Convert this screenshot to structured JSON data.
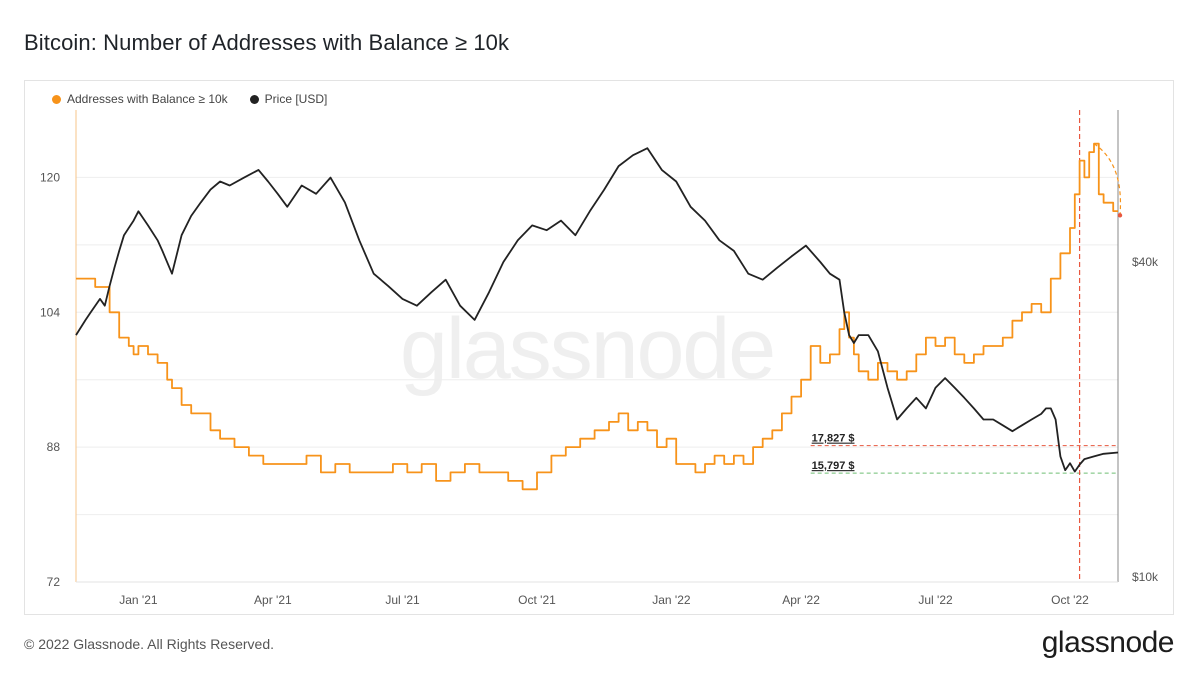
{
  "title": "Bitcoin: Number of Addresses with Balance ≥ 10k",
  "footer": "© 2022 Glassnode. All Rights Reserved.",
  "brand": "glassnode",
  "watermark": "glassnode",
  "colors": {
    "addresses": "#f7931a",
    "price": "#222222",
    "marker": "#e8573f",
    "support": "#6fbf73"
  },
  "chart_data": {
    "type": "line",
    "title": "Bitcoin: Number of Addresses with Balance ≥ 10k",
    "x_tick_labels": [
      "Jan '21",
      "Apr '21",
      "Jul '21",
      "Oct '21",
      "Jan '22",
      "Apr '22",
      "Jul '22",
      "Oct '22"
    ],
    "y_left_ticks": [
      72,
      88,
      104,
      120
    ],
    "y_left_range": [
      72,
      128
    ],
    "y_right_ticks": [
      "$10k",
      "$40k"
    ],
    "y_right_scale": "log",
    "legend": [
      "Addresses with Balance ≥ 10k",
      "Price [USD]"
    ],
    "annotations": [
      {
        "label": "17,827 $",
        "price": 17827
      },
      {
        "label": "15,797 $",
        "price": 15797
      }
    ],
    "series": [
      {
        "name": "Addresses with Balance ≥ 10k",
        "axis": "left",
        "x": [
          0,
          4,
          7,
          9,
          11,
          12,
          13,
          15,
          17,
          19,
          20,
          22,
          24,
          26,
          28,
          30,
          33,
          36,
          39,
          42,
          45,
          48,
          51,
          54,
          57,
          60,
          63,
          66,
          69,
          72,
          75,
          78,
          81,
          84,
          87,
          90,
          93,
          96,
          99,
          102,
          105,
          108,
          111,
          113,
          115,
          117,
          119,
          121,
          123,
          125,
          127,
          129,
          131,
          133,
          135,
          137,
          139,
          141,
          143,
          145,
          147,
          149,
          151,
          153,
          155,
          157,
          159,
          160,
          161,
          162,
          163,
          165,
          167,
          169,
          171,
          173,
          175,
          177,
          179,
          181,
          183,
          185,
          187,
          189,
          191,
          193,
          195,
          197,
          199,
          201,
          203,
          205,
          207,
          208,
          209,
          210,
          211,
          212,
          213,
          214,
          215,
          216,
          217
        ],
        "values": [
          108,
          107,
          104,
          101,
          100,
          99,
          100,
          99,
          98,
          96,
          95,
          93,
          92,
          92,
          90,
          89,
          88,
          87,
          86,
          86,
          86,
          87,
          85,
          86,
          85,
          85,
          85,
          86,
          85,
          86,
          84,
          85,
          86,
          85,
          85,
          84,
          83,
          85,
          87,
          88,
          89,
          90,
          91,
          92,
          90,
          91,
          90,
          88,
          89,
          86,
          86,
          85,
          86,
          87,
          86,
          87,
          86,
          88,
          89,
          90,
          92,
          94,
          96,
          100,
          98,
          99,
          102,
          104,
          101,
          99,
          97,
          96,
          98,
          97,
          96,
          97,
          99,
          101,
          100,
          101,
          99,
          98,
          99,
          100,
          100,
          101,
          103,
          104,
          105,
          104,
          108,
          111,
          114,
          118,
          122,
          120,
          123,
          124,
          118,
          117,
          117,
          116,
          116
        ]
      },
      {
        "name": "Price [USD]",
        "axis": "right",
        "x": [
          0,
          2,
          3,
          5,
          6,
          7,
          8,
          9,
          10,
          12,
          13,
          15,
          17,
          18,
          20,
          22,
          24,
          26,
          28,
          30,
          32,
          35,
          38,
          40,
          42,
          44,
          47,
          50,
          53,
          56,
          59,
          62,
          65,
          68,
          71,
          74,
          77,
          80,
          83,
          86,
          89,
          92,
          95,
          98,
          101,
          104,
          107,
          110,
          113,
          116,
          119,
          122,
          125,
          128,
          131,
          134,
          137,
          140,
          143,
          146,
          149,
          152,
          155,
          157,
          159,
          160,
          161,
          162,
          163,
          165,
          167,
          169,
          171,
          173,
          175,
          177,
          179,
          181,
          183,
          185,
          187,
          189,
          191,
          193,
          195,
          197,
          199,
          201,
          202,
          203,
          204,
          205,
          206,
          207,
          208,
          209,
          210,
          212,
          214,
          217
        ],
        "values": [
          29000,
          31000,
          32000,
          34000,
          33000,
          36000,
          39000,
          42000,
          45000,
          48000,
          50000,
          47000,
          44000,
          42000,
          38000,
          45000,
          49000,
          52000,
          55000,
          57000,
          56000,
          58000,
          60000,
          57000,
          54000,
          51000,
          56000,
          54000,
          58000,
          52000,
          44000,
          38000,
          36000,
          34000,
          33000,
          35000,
          37000,
          33000,
          31000,
          35000,
          40000,
          44000,
          47000,
          46000,
          48000,
          45000,
          50000,
          55000,
          61000,
          64000,
          66000,
          60000,
          57000,
          51000,
          48000,
          44000,
          42000,
          38000,
          37000,
          39000,
          41000,
          43000,
          40000,
          38000,
          37000,
          32000,
          29000,
          28000,
          29000,
          29000,
          27000,
          23000,
          20000,
          21000,
          22000,
          21000,
          23000,
          24000,
          23000,
          22000,
          21000,
          20000,
          20000,
          19500,
          19000,
          19500,
          20000,
          20500,
          21000,
          21000,
          20000,
          17000,
          16000,
          16500,
          15900,
          16400,
          16800,
          17000,
          17200,
          17300
        ]
      }
    ]
  }
}
